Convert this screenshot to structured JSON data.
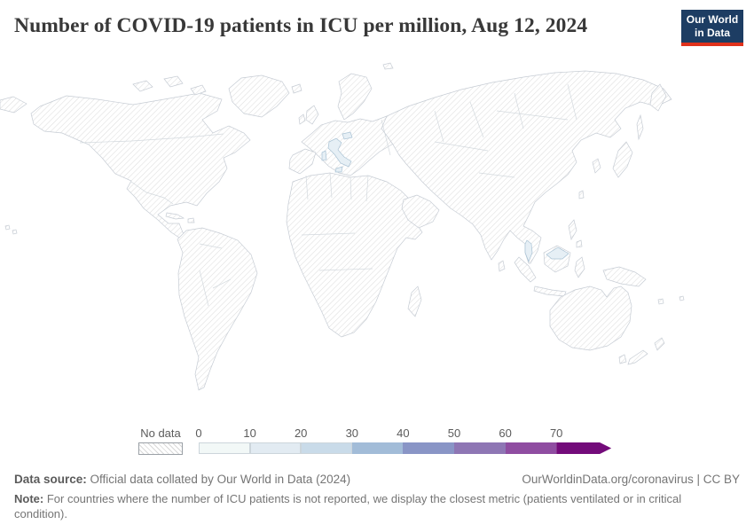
{
  "header": {
    "title": "Number of COVID-19 patients in ICU per million, Aug 12, 2024",
    "logo": {
      "line1": "Our World",
      "line2": "in Data",
      "bg_color": "#1d3d63",
      "accent_color": "#e0311b"
    }
  },
  "chart_data": {
    "type": "choropleth_map",
    "title": "Number of COVID-19 patients in ICU per million, Aug 12, 2024",
    "metric": "COVID-19 patients in ICU per million",
    "date": "Aug 12, 2024",
    "projection": "world",
    "legend": {
      "no_data_label": "No data",
      "no_data_style": "diagonal-hatch",
      "tick_labels": [
        "0",
        "10",
        "20",
        "30",
        "40",
        "50",
        "60",
        "70"
      ],
      "bucket_colors": [
        "#f2f8f7",
        "#e2ebf2",
        "#c9dbe9",
        "#a2bcd8",
        "#8995c6",
        "#8e76b4",
        "#8f4da1",
        "#730b7a"
      ],
      "scale_open_ended_arrow": true
    },
    "countries_with_data": [
      {
        "name": "Italy",
        "bucket": "0-10"
      },
      {
        "name": "Malaysia",
        "bucket": "0-10"
      },
      {
        "name": "Slovenia",
        "bucket": "0-10"
      }
    ],
    "no_data_regions": "all other countries (hatched)"
  },
  "legend": {
    "no_data_label": "No data"
  },
  "footer": {
    "source_label": "Data source:",
    "source_text": " Official data collated by Our World in Data (2024)",
    "link_text": "OurWorldinData.org/coronavirus | CC BY",
    "note_label": "Note:",
    "note_text": " For countries where the number of ICU patients is not reported, we display the closest metric (patients ventilated or in critical condition)."
  },
  "map_colors": {
    "hatch_line": "#dedede",
    "country_border": "#c6ccd4",
    "low_bucket_fill": "#e6eff5",
    "low_bucket_stroke": "#a9c2d4"
  }
}
